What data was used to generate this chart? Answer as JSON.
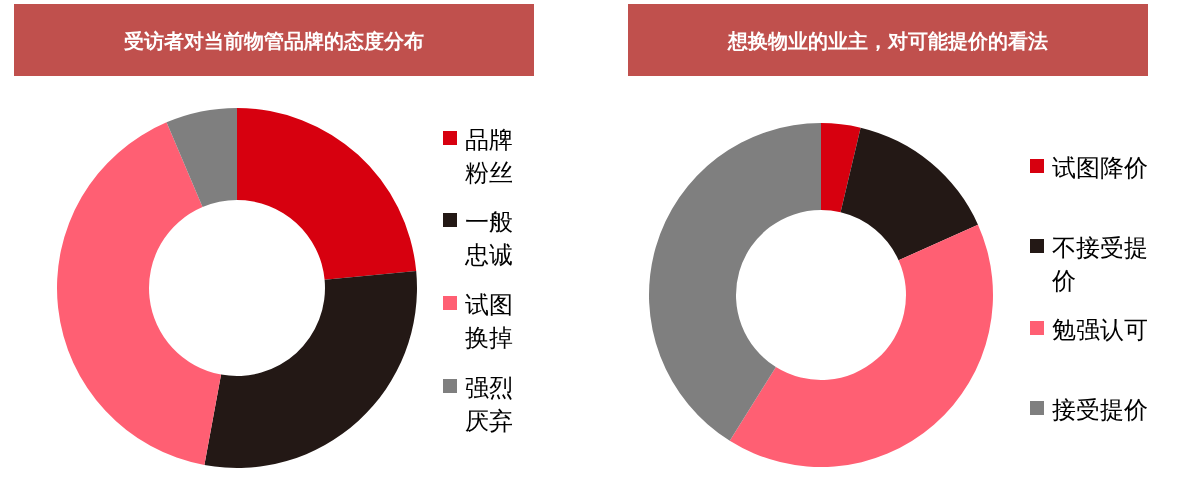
{
  "chart_data": [
    {
      "type": "donut",
      "title": "受访者对当前物管品牌的态度分布",
      "categories": [
        "品牌粉丝",
        "一般忠诚",
        "试图换掉",
        "强烈厌弃"
      ],
      "values": [
        23.5,
        29.4,
        40.7,
        6.4
      ],
      "colors": [
        "#d7000f",
        "#231815",
        "#ff5f73",
        "#7f7f7f"
      ],
      "legend": "right"
    },
    {
      "type": "donut",
      "title": "想换物业的业主，对可能提价的看法",
      "categories": [
        "试图降价",
        "不接受提价",
        "勉强认可",
        "接受提价"
      ],
      "values": [
        3.7,
        14.6,
        40.6,
        41.1
      ],
      "colors": [
        "#d7000f",
        "#231815",
        "#ff5f73",
        "#7f7f7f"
      ],
      "legend": "right"
    }
  ]
}
